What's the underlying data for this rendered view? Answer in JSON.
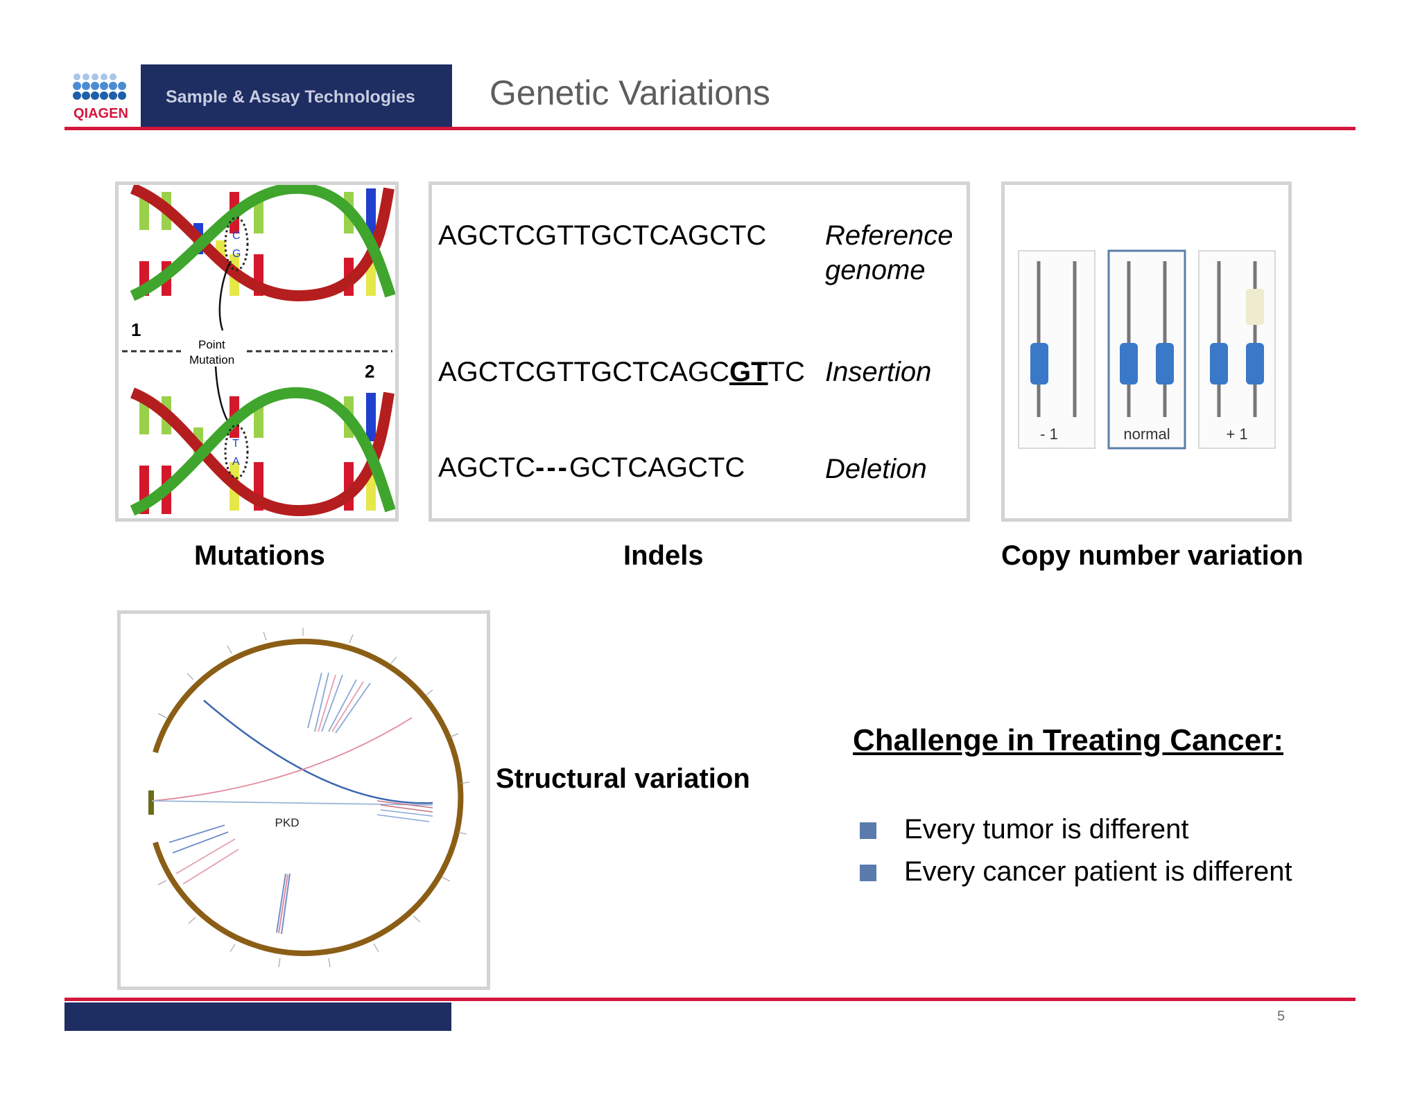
{
  "header": {
    "logo_text": "QIAGEN",
    "band_label": "Sample & Assay Technologies",
    "title": "Genetic Variations"
  },
  "mutations": {
    "caption": "Mutations",
    "point_label_1": "Point",
    "point_label_2": "Mutation",
    "strand_1": "1",
    "strand_2": "2",
    "pair_top": [
      "C",
      "G"
    ],
    "pair_bottom": [
      "T",
      "A"
    ]
  },
  "indels": {
    "caption": "Indels",
    "reference_seq": "AGCTCGTTGCTCAGCTC",
    "reference_label_1": "Reference",
    "reference_label_2": "genome",
    "insertion_seq_a": "AGCTCGTTGCTCAGC",
    "insertion_seq_bold": "GT",
    "insertion_seq_b": "TC",
    "insertion_label": "Insertion",
    "deletion_seq_a": "AGCTC",
    "deletion_gap": "---",
    "deletion_seq_b": "GCTCAGCTC",
    "deletion_label": "Deletion"
  },
  "cnv": {
    "caption": "Copy number variation",
    "labels": [
      "- 1",
      "normal",
      "+ 1"
    ]
  },
  "structural": {
    "caption": "Structural variation",
    "center_label": "PKD"
  },
  "challenge": {
    "heading": "Challenge in Treating Cancer:",
    "bullets": [
      "Every tumor is different",
      "Every cancer patient is different"
    ]
  },
  "footer": {
    "page_number": "5"
  },
  "colors": {
    "navy": "#1e2d62",
    "red_rule": "#d4163c",
    "bullet": "#5b7bad"
  }
}
